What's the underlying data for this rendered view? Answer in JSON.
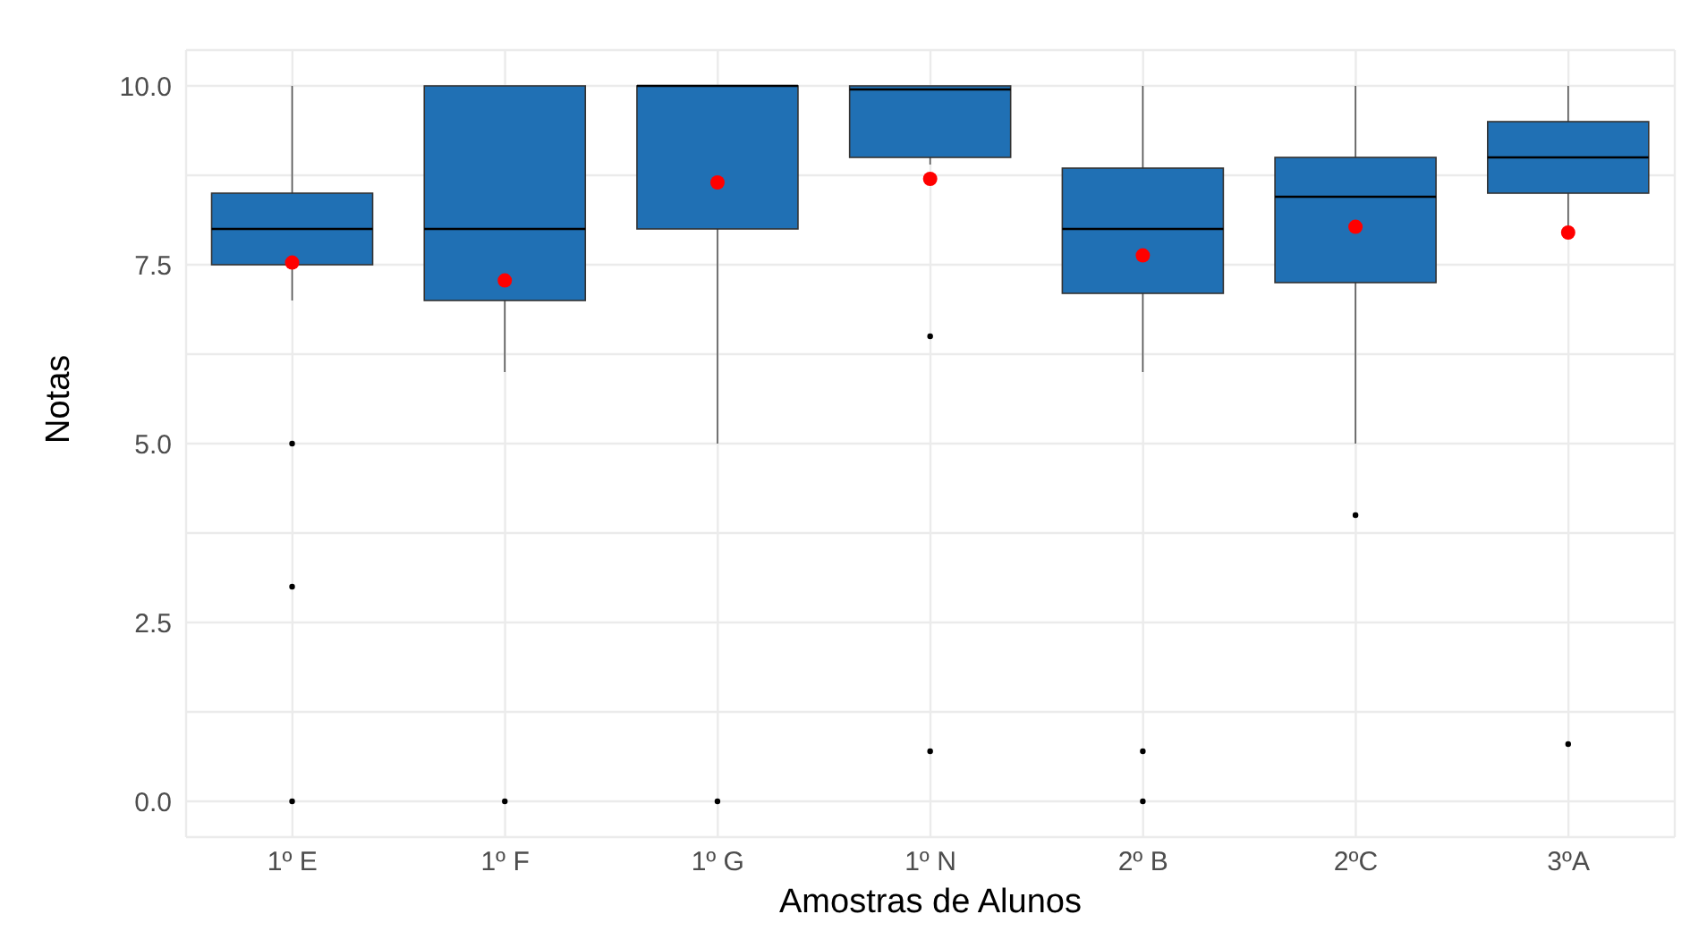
{
  "chart_data": {
    "type": "box",
    "xlabel": "Amostras de Alunos",
    "ylabel": "Notas",
    "categories": [
      "1º E",
      "1º F",
      "1º G",
      "1º N",
      "2º B",
      "2ºC",
      "3ºA"
    ],
    "ylim": [
      -0.5,
      10.5
    ],
    "yticks": [
      {
        "value": 0,
        "label": "0.0"
      },
      {
        "value": 1.25,
        "label": null
      },
      2.5,
      {
        "value": 3.75,
        "label": null
      },
      {
        "value": 5,
        "label": "5.0"
      },
      {
        "value": 6.25,
        "label": null
      },
      7.5,
      {
        "value": 8.75,
        "label": null
      },
      {
        "value": 10,
        "label": "10.0"
      }
    ],
    "grid": true,
    "legend": false,
    "series": [
      {
        "color": "#2070b4",
        "boxes": [
          {
            "low": 7,
            "q1": 7.5,
            "median": 8,
            "q3": 8.5,
            "high": 10,
            "mean": 7.53,
            "outliers": [
              5,
              3,
              0
            ]
          },
          {
            "low": 6,
            "q1": 7,
            "median": 8,
            "q3": 10,
            "high": 10,
            "mean": 7.28,
            "outliers": [
              0
            ]
          },
          {
            "low": 5,
            "q1": 8,
            "median": 10,
            "q3": 10,
            "high": 10,
            "mean": 8.65,
            "outliers": [
              0
            ]
          },
          {
            "low": 8.9,
            "q1": 9,
            "median": 9.95,
            "q3": 10,
            "high": 10,
            "mean": 8.7,
            "outliers": [
              6.5,
              0.7
            ]
          },
          {
            "low": 6,
            "q1": 7.1,
            "median": 8,
            "q3": 8.85,
            "high": 10,
            "mean": 7.63,
            "outliers": [
              0.7,
              0
            ]
          },
          {
            "low": 5,
            "q1": 7.25,
            "median": 8.45,
            "q3": 9,
            "high": 10,
            "mean": 8.03,
            "outliers": [
              4
            ]
          },
          {
            "low": 8,
            "q1": 8.5,
            "median": 9,
            "q3": 9.5,
            "high": 10,
            "mean": 7.95,
            "outliers": [
              0.8
            ]
          }
        ]
      }
    ]
  }
}
